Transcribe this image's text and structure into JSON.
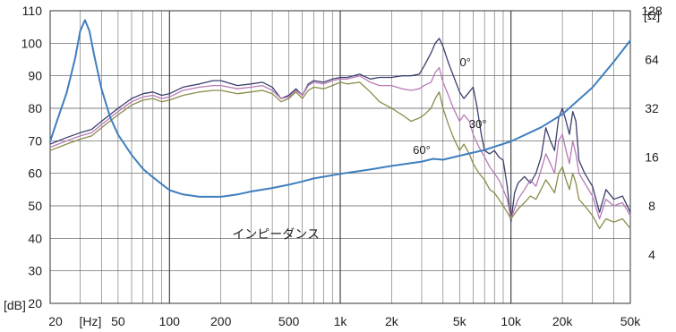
{
  "chart_data": {
    "type": "line",
    "x_scale": "log",
    "xlim": [
      20,
      50000
    ],
    "ylim": [
      20,
      110
    ],
    "y2_scale": "log2",
    "y2lim": [
      2,
      128
    ],
    "grid": true,
    "x_ticks": [
      {
        "value": 20,
        "label": "20"
      },
      {
        "value": 50,
        "label": "50"
      },
      {
        "value": 100,
        "label": "100"
      },
      {
        "value": 200,
        "label": "200"
      },
      {
        "value": 500,
        "label": "500"
      },
      {
        "value": 1000,
        "label": "1k"
      },
      {
        "value": 2000,
        "label": "2k"
      },
      {
        "value": 5000,
        "label": "5k"
      },
      {
        "value": 10000,
        "label": "10k"
      },
      {
        "value": 20000,
        "label": "20k"
      },
      {
        "value": 50000,
        "label": "50k"
      }
    ],
    "x_unit_label": "[Hz]",
    "y_ticks": [
      110,
      100,
      90,
      80,
      70,
      60,
      50,
      40,
      30,
      20
    ],
    "y_unit_label": "[dB]",
    "y2_ticks": [
      128,
      64,
      32,
      16,
      8,
      4
    ],
    "y2_unit_label": "[Ω]",
    "series": [
      {
        "name": "0°",
        "axis": "left",
        "color": "#3b3f6e",
        "points": [
          [
            20,
            69
          ],
          [
            25,
            71
          ],
          [
            30,
            72.5
          ],
          [
            35,
            73.5
          ],
          [
            40,
            76
          ],
          [
            50,
            80
          ],
          [
            60,
            83
          ],
          [
            70,
            84.5
          ],
          [
            80,
            85
          ],
          [
            90,
            84
          ],
          [
            100,
            84.5
          ],
          [
            120,
            86.5
          ],
          [
            150,
            87.5
          ],
          [
            180,
            88.5
          ],
          [
            200,
            88.5
          ],
          [
            250,
            87
          ],
          [
            300,
            87.5
          ],
          [
            350,
            88
          ],
          [
            400,
            86.5
          ],
          [
            450,
            83
          ],
          [
            500,
            84
          ],
          [
            550,
            86
          ],
          [
            600,
            84
          ],
          [
            650,
            87.5
          ],
          [
            700,
            88.5
          ],
          [
            800,
            88
          ],
          [
            900,
            89
          ],
          [
            1000,
            89.5
          ],
          [
            1100,
            89.5
          ],
          [
            1300,
            90.5
          ],
          [
            1500,
            89
          ],
          [
            1700,
            89.5
          ],
          [
            2000,
            89.5
          ],
          [
            2300,
            90
          ],
          [
            2600,
            90
          ],
          [
            2900,
            90.5
          ],
          [
            3100,
            93
          ],
          [
            3400,
            97
          ],
          [
            3600,
            100
          ],
          [
            3800,
            101.5
          ],
          [
            4000,
            99
          ],
          [
            4300,
            94
          ],
          [
            4600,
            90
          ],
          [
            5000,
            85
          ],
          [
            5300,
            83
          ],
          [
            5700,
            85
          ],
          [
            6000,
            86.5
          ],
          [
            6300,
            81
          ],
          [
            6700,
            72
          ],
          [
            7000,
            67
          ],
          [
            7500,
            66
          ],
          [
            8000,
            67
          ],
          [
            8500,
            65
          ],
          [
            9000,
            64
          ],
          [
            9500,
            56
          ],
          [
            10000,
            45
          ],
          [
            10500,
            54
          ],
          [
            11000,
            57
          ],
          [
            12000,
            59
          ],
          [
            13000,
            57
          ],
          [
            14000,
            60
          ],
          [
            15000,
            65
          ],
          [
            16000,
            74
          ],
          [
            17000,
            70
          ],
          [
            18000,
            67
          ],
          [
            19000,
            77
          ],
          [
            20000,
            80
          ],
          [
            21000,
            76
          ],
          [
            22000,
            72
          ],
          [
            23000,
            79
          ],
          [
            24000,
            76
          ],
          [
            25000,
            64
          ],
          [
            27000,
            60
          ],
          [
            30000,
            56
          ],
          [
            33000,
            48
          ],
          [
            36000,
            55
          ],
          [
            40000,
            52
          ],
          [
            45000,
            53
          ],
          [
            50000,
            48
          ]
        ]
      },
      {
        "name": "30°",
        "axis": "left",
        "color": "#b87ab8",
        "points": [
          [
            20,
            68
          ],
          [
            25,
            70
          ],
          [
            30,
            71.5
          ],
          [
            35,
            72.5
          ],
          [
            40,
            75
          ],
          [
            50,
            79
          ],
          [
            60,
            82
          ],
          [
            70,
            83.5
          ],
          [
            80,
            84
          ],
          [
            90,
            83
          ],
          [
            100,
            83.5
          ],
          [
            120,
            85.5
          ],
          [
            150,
            86.5
          ],
          [
            180,
            87
          ],
          [
            200,
            87
          ],
          [
            250,
            86
          ],
          [
            300,
            86.5
          ],
          [
            350,
            87
          ],
          [
            400,
            85.5
          ],
          [
            450,
            83
          ],
          [
            500,
            83.5
          ],
          [
            550,
            85.5
          ],
          [
            600,
            84
          ],
          [
            650,
            87
          ],
          [
            700,
            88
          ],
          [
            800,
            87.5
          ],
          [
            900,
            88.5
          ],
          [
            1000,
            89
          ],
          [
            1100,
            89
          ],
          [
            1300,
            90
          ],
          [
            1500,
            88
          ],
          [
            1700,
            87
          ],
          [
            2000,
            87
          ],
          [
            2300,
            86
          ],
          [
            2600,
            85.5
          ],
          [
            2900,
            86
          ],
          [
            3100,
            87
          ],
          [
            3400,
            88
          ],
          [
            3600,
            91
          ],
          [
            3800,
            92.5
          ],
          [
            4000,
            88
          ],
          [
            4300,
            84
          ],
          [
            4600,
            80
          ],
          [
            5000,
            76
          ],
          [
            5300,
            78
          ],
          [
            5700,
            76
          ],
          [
            6000,
            72
          ],
          [
            6500,
            68
          ],
          [
            7000,
            65
          ],
          [
            7500,
            62
          ],
          [
            8000,
            60
          ],
          [
            8500,
            58
          ],
          [
            9000,
            55
          ],
          [
            9500,
            52
          ],
          [
            10000,
            46
          ],
          [
            11000,
            52
          ],
          [
            12000,
            55
          ],
          [
            13000,
            58
          ],
          [
            14000,
            56
          ],
          [
            15000,
            61
          ],
          [
            16000,
            66
          ],
          [
            17000,
            63
          ],
          [
            18000,
            60
          ],
          [
            19000,
            70
          ],
          [
            20000,
            72
          ],
          [
            21000,
            67
          ],
          [
            22000,
            63
          ],
          [
            23000,
            70
          ],
          [
            24000,
            66
          ],
          [
            25000,
            60
          ],
          [
            27000,
            57
          ],
          [
            30000,
            53
          ],
          [
            33000,
            46
          ],
          [
            36000,
            52
          ],
          [
            40000,
            50
          ],
          [
            45000,
            51
          ],
          [
            50000,
            47
          ]
        ]
      },
      {
        "name": "60°",
        "axis": "left",
        "color": "#8a8c4a",
        "points": [
          [
            20,
            67
          ],
          [
            25,
            69
          ],
          [
            30,
            70.5
          ],
          [
            35,
            71.5
          ],
          [
            40,
            74
          ],
          [
            50,
            78
          ],
          [
            60,
            81
          ],
          [
            70,
            82.5
          ],
          [
            80,
            83
          ],
          [
            90,
            82
          ],
          [
            100,
            82.5
          ],
          [
            120,
            84
          ],
          [
            150,
            85
          ],
          [
            180,
            85.5
          ],
          [
            200,
            85.5
          ],
          [
            250,
            84.5
          ],
          [
            300,
            85
          ],
          [
            350,
            85.5
          ],
          [
            400,
            84.5
          ],
          [
            450,
            82
          ],
          [
            500,
            83
          ],
          [
            550,
            85
          ],
          [
            600,
            83
          ],
          [
            650,
            85.5
          ],
          [
            700,
            86.5
          ],
          [
            800,
            86
          ],
          [
            900,
            87
          ],
          [
            1000,
            88
          ],
          [
            1100,
            87.5
          ],
          [
            1300,
            88
          ],
          [
            1500,
            85
          ],
          [
            1700,
            82
          ],
          [
            2000,
            80
          ],
          [
            2300,
            78
          ],
          [
            2600,
            76
          ],
          [
            2900,
            77
          ],
          [
            3100,
            78
          ],
          [
            3400,
            80
          ],
          [
            3600,
            83
          ],
          [
            3800,
            85
          ],
          [
            4000,
            80
          ],
          [
            4300,
            75
          ],
          [
            4600,
            71
          ],
          [
            5000,
            67
          ],
          [
            5300,
            69
          ],
          [
            5700,
            66
          ],
          [
            6000,
            63
          ],
          [
            6500,
            60
          ],
          [
            7000,
            58
          ],
          [
            7500,
            55
          ],
          [
            8000,
            54
          ],
          [
            8500,
            52
          ],
          [
            9000,
            50
          ],
          [
            9500,
            48
          ],
          [
            10000,
            46
          ],
          [
            11000,
            49
          ],
          [
            12000,
            51
          ],
          [
            13000,
            53
          ],
          [
            14000,
            52
          ],
          [
            15000,
            55
          ],
          [
            16000,
            58
          ],
          [
            17000,
            56
          ],
          [
            18000,
            54
          ],
          [
            19000,
            60
          ],
          [
            20000,
            62
          ],
          [
            21000,
            58
          ],
          [
            22000,
            55
          ],
          [
            23000,
            60
          ],
          [
            24000,
            57
          ],
          [
            25000,
            52
          ],
          [
            27000,
            50
          ],
          [
            30000,
            47
          ],
          [
            33000,
            43
          ],
          [
            36000,
            46
          ],
          [
            40000,
            45
          ],
          [
            45000,
            46
          ],
          [
            50000,
            43
          ]
        ]
      },
      {
        "name": "インピーダンス",
        "axis": "right",
        "color": "#3f7fbf",
        "points": [
          [
            20,
            20
          ],
          [
            22,
            27
          ],
          [
            25,
            40
          ],
          [
            28,
            65
          ],
          [
            30,
            96
          ],
          [
            32,
            112
          ],
          [
            34,
            96
          ],
          [
            36,
            70
          ],
          [
            40,
            42
          ],
          [
            45,
            28
          ],
          [
            50,
            22
          ],
          [
            60,
            16.5
          ],
          [
            70,
            13.5
          ],
          [
            80,
            12
          ],
          [
            100,
            10
          ],
          [
            120,
            9.4
          ],
          [
            150,
            9.1
          ],
          [
            200,
            9.1
          ],
          [
            250,
            9.4
          ],
          [
            300,
            9.8
          ],
          [
            400,
            10.3
          ],
          [
            500,
            10.8
          ],
          [
            600,
            11.3
          ],
          [
            700,
            11.8
          ],
          [
            800,
            12.1
          ],
          [
            1000,
            12.6
          ],
          [
            1500,
            13.4
          ],
          [
            2000,
            14.1
          ],
          [
            3000,
            15.0
          ],
          [
            3500,
            15.6
          ],
          [
            4000,
            15.4
          ],
          [
            5000,
            16.3
          ],
          [
            7000,
            17.7
          ],
          [
            10000,
            20
          ],
          [
            15000,
            24.4
          ],
          [
            20000,
            29.4
          ],
          [
            30000,
            43
          ],
          [
            40000,
            62
          ],
          [
            50000,
            84
          ]
        ]
      }
    ],
    "annotations": [
      {
        "text": "0°",
        "x": 5400,
        "y": 93
      },
      {
        "text": "30°",
        "x": 6400,
        "y": 74
      },
      {
        "text": "60°",
        "x": 3000,
        "y": 66
      },
      {
        "text": "インピーダンス",
        "x": 420,
        "y": 40
      }
    ]
  }
}
